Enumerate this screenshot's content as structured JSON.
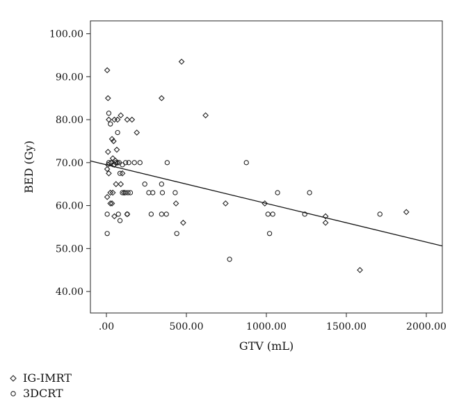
{
  "chart_data": {
    "type": "scatter",
    "xlabel": "GTV (mL)",
    "ylabel": "BED (Gy)",
    "xlim": [
      -100,
      2100
    ],
    "ylim": [
      35,
      103
    ],
    "x_ticks": [
      0,
      500,
      1000,
      1500,
      2000
    ],
    "x_tick_labels": [
      ".00",
      "500.00",
      "1000.00",
      "1500.00",
      "2000.00"
    ],
    "y_ticks": [
      40,
      50,
      60,
      70,
      80,
      90,
      100
    ],
    "y_tick_labels": [
      "40.00",
      "50.00",
      "60.00",
      "70.00",
      "80.00",
      "90.00",
      "100.00"
    ],
    "grid": false,
    "legend_position": "bottom-left",
    "series": [
      {
        "name": "IG-IMRT",
        "marker": "diamond",
        "points": [
          [
            5,
            91.5
          ],
          [
            10,
            85
          ],
          [
            15,
            80
          ],
          [
            50,
            80
          ],
          [
            70,
            80
          ],
          [
            90,
            81
          ],
          [
            130,
            80
          ],
          [
            160,
            80
          ],
          [
            190,
            77
          ],
          [
            470,
            93.5
          ],
          [
            345,
            85
          ],
          [
            620,
            81
          ],
          [
            35,
            75.5
          ],
          [
            45,
            75
          ],
          [
            65,
            73
          ],
          [
            10,
            72.5
          ],
          [
            40,
            71
          ],
          [
            55,
            70.5
          ],
          [
            30,
            70
          ],
          [
            70,
            70
          ],
          [
            10,
            69.5
          ],
          [
            50,
            69.5
          ],
          [
            5,
            68.5
          ],
          [
            15,
            67.5
          ],
          [
            100,
            67.5
          ],
          [
            5,
            62
          ],
          [
            25,
            63
          ],
          [
            40,
            63
          ],
          [
            60,
            65
          ],
          [
            90,
            65
          ],
          [
            110,
            63
          ],
          [
            25,
            60.5
          ],
          [
            35,
            60.5
          ],
          [
            50,
            57.5
          ],
          [
            130,
            58
          ],
          [
            435,
            60.5
          ],
          [
            480,
            56
          ],
          [
            745,
            60.5
          ],
          [
            990,
            60.5
          ],
          [
            1370,
            57.5
          ],
          [
            1370,
            56
          ],
          [
            1585,
            45
          ],
          [
            1875,
            58.5
          ]
        ]
      },
      {
        "name": "3DCRT",
        "marker": "circle",
        "points": [
          [
            15,
            81.5
          ],
          [
            25,
            79
          ],
          [
            70,
            77
          ],
          [
            15,
            70
          ],
          [
            30,
            70
          ],
          [
            45,
            69.5
          ],
          [
            60,
            70
          ],
          [
            80,
            70
          ],
          [
            100,
            69.5
          ],
          [
            120,
            70
          ],
          [
            140,
            70
          ],
          [
            175,
            70
          ],
          [
            210,
            70
          ],
          [
            380,
            70
          ],
          [
            875,
            70
          ],
          [
            85,
            67.5
          ],
          [
            100,
            63
          ],
          [
            120,
            63
          ],
          [
            135,
            63
          ],
          [
            150,
            63
          ],
          [
            240,
            65
          ],
          [
            265,
            63
          ],
          [
            290,
            63
          ],
          [
            345,
            65
          ],
          [
            350,
            63
          ],
          [
            430,
            63
          ],
          [
            1070,
            63
          ],
          [
            1270,
            63
          ],
          [
            130,
            58
          ],
          [
            280,
            58
          ],
          [
            345,
            58
          ],
          [
            375,
            58
          ],
          [
            1010,
            58
          ],
          [
            1040,
            58
          ],
          [
            1240,
            58
          ],
          [
            1710,
            58
          ],
          [
            5,
            58
          ],
          [
            75,
            58
          ],
          [
            85,
            56.5
          ],
          [
            5,
            53.5
          ],
          [
            440,
            53.5
          ],
          [
            1020,
            53.5
          ],
          [
            770,
            47.5
          ]
        ]
      }
    ],
    "trend_line": {
      "x": [
        -100,
        2100
      ],
      "y": [
        70.4,
        50.6
      ]
    }
  }
}
